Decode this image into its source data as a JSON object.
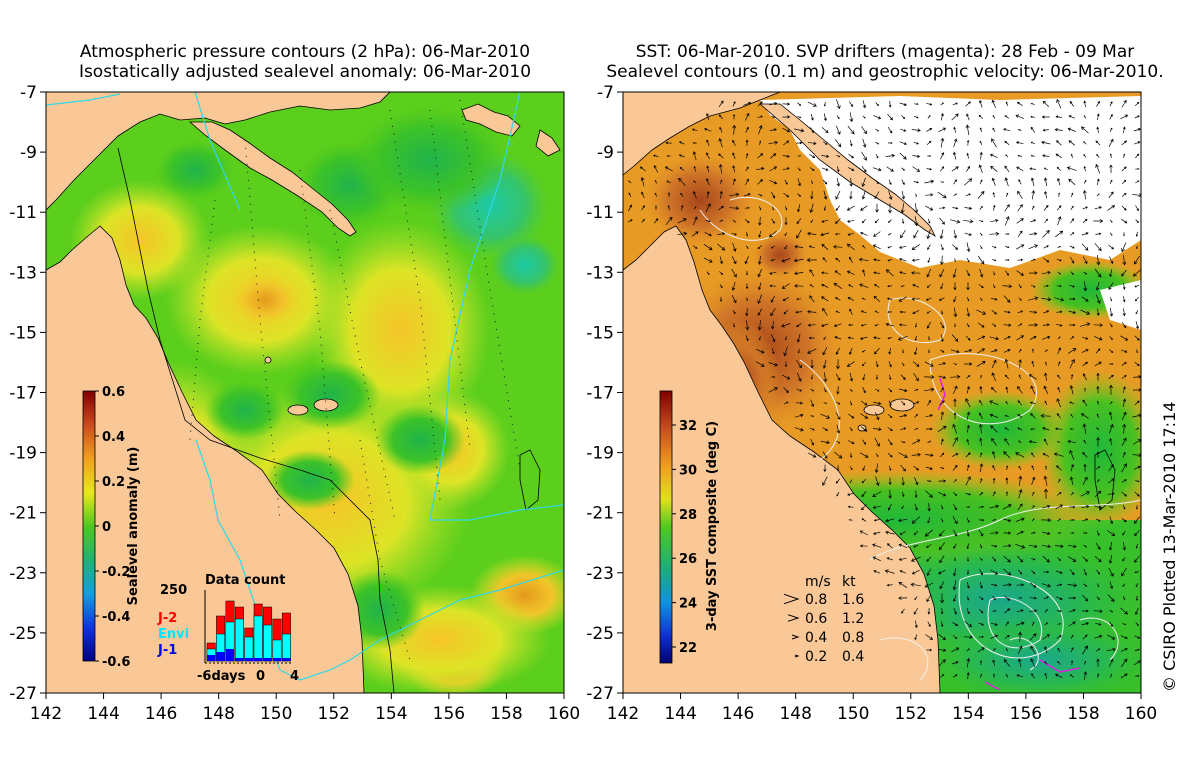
{
  "left_panel": {
    "title_line1": "Atmospheric pressure contours (2 hPa): 06-Mar-2010",
    "title_line2": "Isostatically adjusted sealevel anomaly: 06-Mar-2010",
    "y_ticks": [
      "-7",
      "-9",
      "-11",
      "-13",
      "-15",
      "-17",
      "-19",
      "-21",
      "-23",
      "-25",
      "-27"
    ],
    "x_ticks": [
      "142",
      "144",
      "146",
      "148",
      "150",
      "152",
      "154",
      "156",
      "158",
      "160"
    ],
    "colorbar": {
      "label": "Sealevel anomaly (m)",
      "ticks": [
        "0.6",
        "0.4",
        "0.2",
        "0",
        "-0.2",
        "-0.4",
        "-0.6"
      ]
    },
    "data_count": {
      "title": "Data count",
      "ymax": "250",
      "legend": [
        {
          "label": "J-2",
          "color": "#ff0000"
        },
        {
          "label": "Envi",
          "color": "#00ffff"
        },
        {
          "label": "J-1",
          "color": "#0000ff"
        }
      ],
      "x_labels": [
        "-6days",
        "0",
        "4"
      ],
      "bars": [
        {
          "total": 0.3,
          "envi": 0.2,
          "j1": 0.1
        },
        {
          "total": 0.75,
          "envi": 0.45,
          "j1": 0.15
        },
        {
          "total": 1.0,
          "envi": 0.65,
          "j1": 0.2
        },
        {
          "total": 0.9,
          "envi": 0.7,
          "j1": 0.05
        },
        {
          "total": 0.55,
          "envi": 0.4,
          "j1": 0.05
        },
        {
          "total": 0.95,
          "envi": 0.75,
          "j1": 0.05
        },
        {
          "total": 0.9,
          "envi": 0.6,
          "j1": 0.05
        },
        {
          "total": 0.7,
          "envi": 0.35,
          "j1": 0.05
        },
        {
          "total": 0.8,
          "envi": 0.45,
          "j1": 0.05
        }
      ]
    }
  },
  "right_panel": {
    "title_line1": "SST: 06-Mar-2010. SVP drifters (magenta): 28 Feb - 09 Mar",
    "title_line2": "Sealevel contours (0.1 m) and geostrophic velocity: 06-Mar-2010.",
    "y_ticks": [
      "-7",
      "-9",
      "-11",
      "-13",
      "-15",
      "-17",
      "-19",
      "-21",
      "-23",
      "-25",
      "-27"
    ],
    "x_ticks": [
      "142",
      "144",
      "146",
      "148",
      "150",
      "152",
      "154",
      "156",
      "158",
      "160"
    ],
    "colorbar": {
      "label": "3-day SST composite (deg C)",
      "ticks": [
        "32",
        "30",
        "28",
        "26",
        "24",
        "22"
      ]
    },
    "velocity_legend": {
      "header_ms": "m/s",
      "header_kt": "kt",
      "rows": [
        {
          "ms": "0.8",
          "kt": "1.6"
        },
        {
          "ms": "0.6",
          "kt": "1.2"
        },
        {
          "ms": "0.4",
          "kt": "0.8"
        },
        {
          "ms": "0.2",
          "kt": "0.4"
        }
      ]
    }
  },
  "copyright": "© CSIRO Plotted 13-Mar-2010 17:14",
  "colors": {
    "land": "#f9c896",
    "sla_background": "#5ccf1c",
    "sst_background": "#e89b24"
  }
}
